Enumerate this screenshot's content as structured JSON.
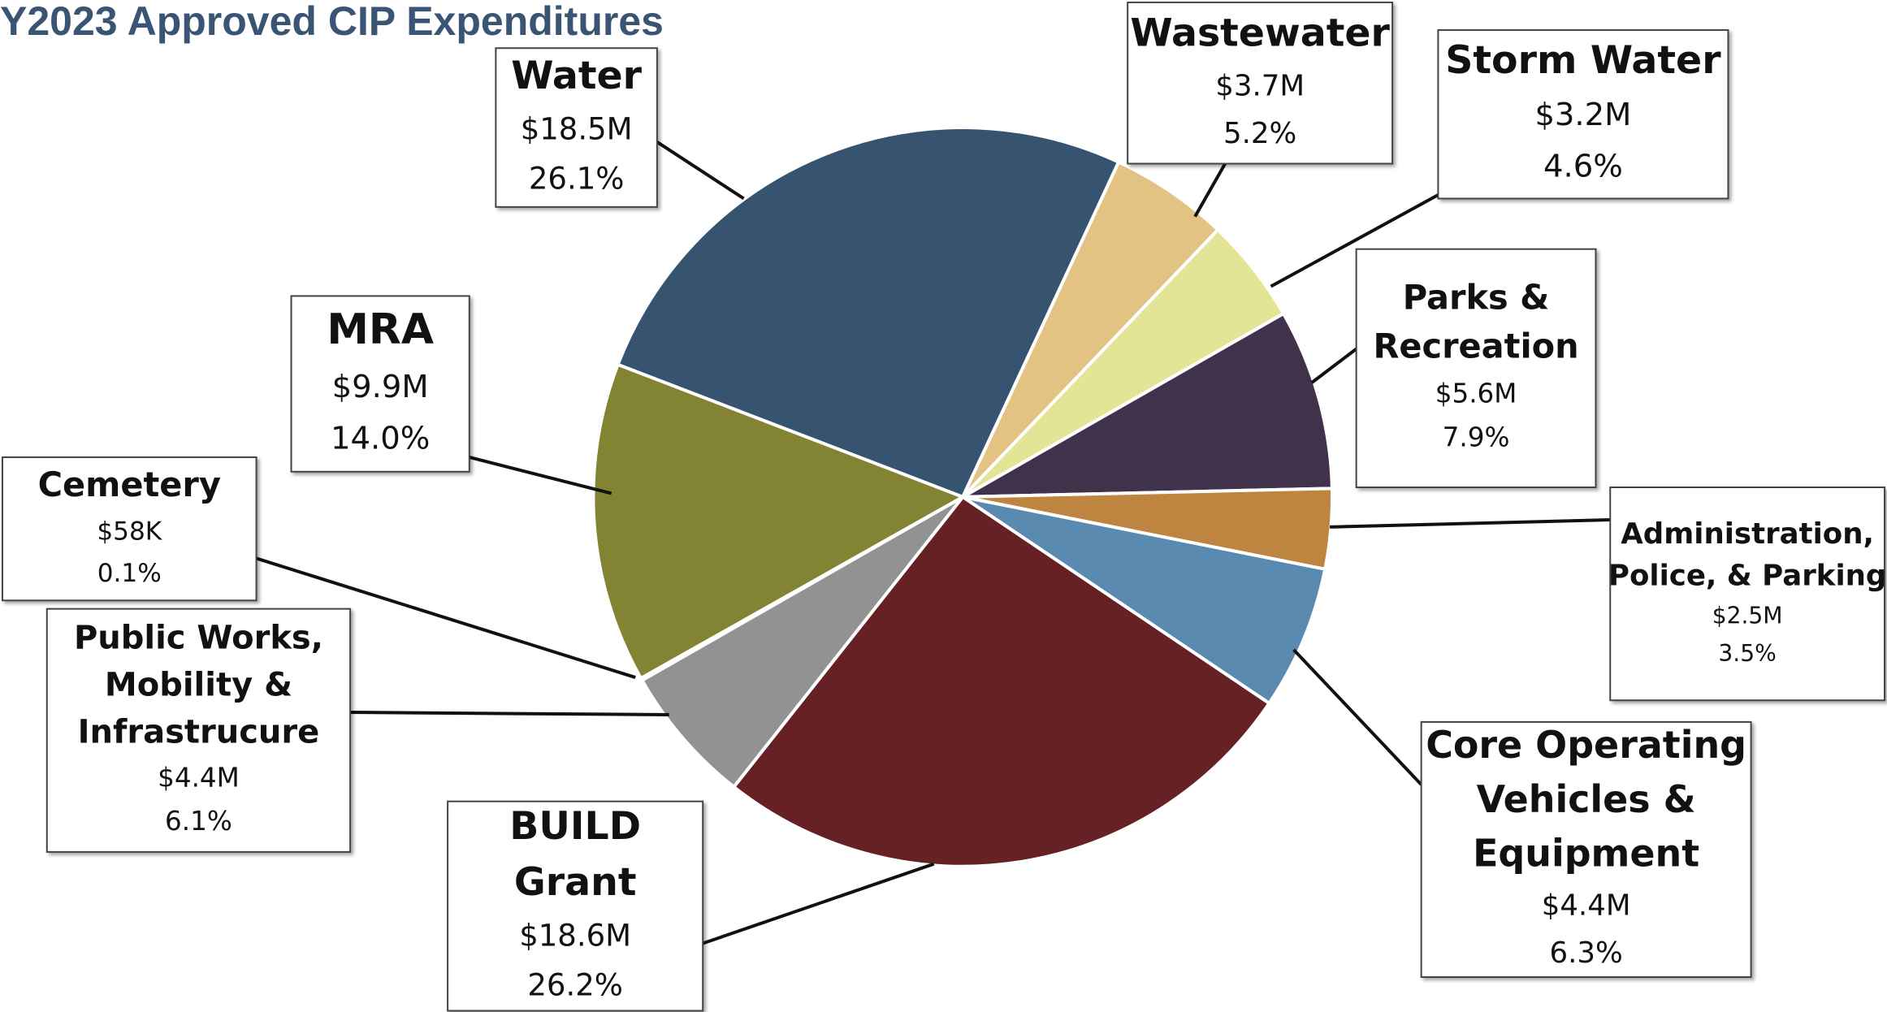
{
  "chart_data": {
    "type": "pie",
    "title": "Y2023 Approved CIP Expenditures",
    "categories": [
      [
        "Water"
      ],
      [
        "Wastewater"
      ],
      [
        "Storm Water"
      ],
      [
        "Parks &",
        "Recreation"
      ],
      [
        "Administration,",
        "Police, & Parking"
      ],
      [
        "Core Operating",
        "Vehicles &",
        "Equipment"
      ],
      [
        "BUILD",
        "Grant"
      ],
      [
        "Public Works,",
        "Mobility &",
        "Infrastrucure"
      ],
      [
        "Cemetery"
      ],
      [
        "MRA"
      ]
    ],
    "values": [
      26.1,
      5.2,
      4.6,
      7.9,
      3.5,
      6.3,
      26.2,
      6.1,
      0.1,
      14.0
    ],
    "value_labels": [
      "26.1%",
      "5.2%",
      "4.6%",
      "7.9%",
      "3.5%",
      "6.3%",
      "26.2%",
      "6.1%",
      "0.1%",
      "14.0%"
    ],
    "amount_labels": [
      "$18.5M",
      "$3.7M",
      "$3.2M",
      "$5.6M",
      "$2.5M",
      "$4.4M",
      "$18.6M",
      "$4.4M",
      "$58K",
      "$9.9M"
    ],
    "colors": [
      "#36536f",
      "#e3c384",
      "#e4e497",
      "#40324a",
      "#bd853f",
      "#5b8ab0",
      "#662125",
      "#929292",
      "#6b6b4a",
      "#838433"
    ]
  }
}
